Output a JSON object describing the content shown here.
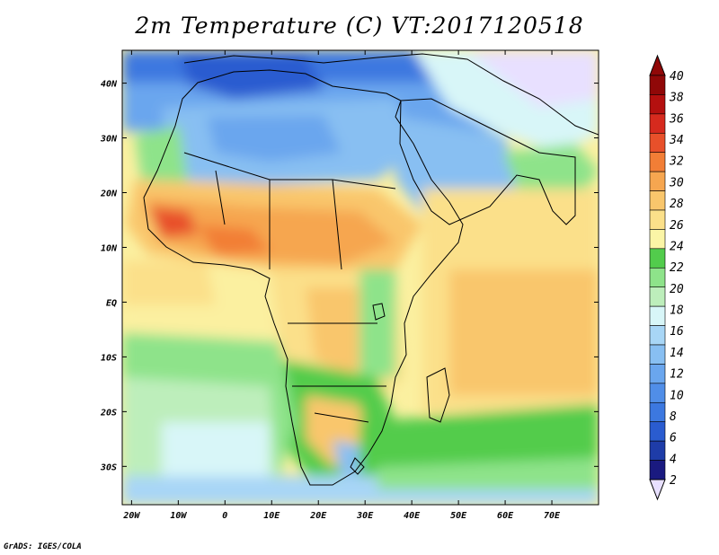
{
  "title": "2m Temperature (C) VT:2017120518",
  "credit": "GrADS: IGES/COLA",
  "map": {
    "lon_range": [
      -22,
      80
    ],
    "lat_range": [
      -37,
      46
    ],
    "lon_ticks": [
      {
        "value": -20,
        "label": "20W"
      },
      {
        "value": -10,
        "label": "10W"
      },
      {
        "value": 0,
        "label": "0"
      },
      {
        "value": 10,
        "label": "10E"
      },
      {
        "value": 20,
        "label": "20E"
      },
      {
        "value": 30,
        "label": "30E"
      },
      {
        "value": 40,
        "label": "40E"
      },
      {
        "value": 50,
        "label": "50E"
      },
      {
        "value": 60,
        "label": "60E"
      },
      {
        "value": 70,
        "label": "70E"
      }
    ],
    "lat_ticks": [
      {
        "value": 40,
        "label": "40N"
      },
      {
        "value": 30,
        "label": "30N"
      },
      {
        "value": 20,
        "label": "20N"
      },
      {
        "value": 10,
        "label": "10N"
      },
      {
        "value": 0,
        "label": "EQ"
      },
      {
        "value": -10,
        "label": "10S"
      },
      {
        "value": -20,
        "label": "20S"
      },
      {
        "value": -30,
        "label": "30S"
      }
    ]
  },
  "colorbar": {
    "levels": [
      2,
      4,
      6,
      8,
      10,
      12,
      14,
      16,
      18,
      20,
      22,
      24,
      26,
      28,
      30,
      32,
      34,
      36,
      38,
      40
    ],
    "colors": [
      "#1a1a80",
      "#1e3ca8",
      "#2a5cd0",
      "#3c78e0",
      "#508ee8",
      "#6aa6ee",
      "#88bff2",
      "#a8d6f6",
      "#d8f6f8",
      "#bdeebb",
      "#8ee38a",
      "#52cc4c",
      "#fbf5a6",
      "#fbe08a",
      "#f9c66c",
      "#f6a650",
      "#f27e36",
      "#e8502a",
      "#d62a1e",
      "#b4100f",
      "#900808"
    ],
    "low_color": "#e8e0ff",
    "high_color": "#900808"
  }
}
